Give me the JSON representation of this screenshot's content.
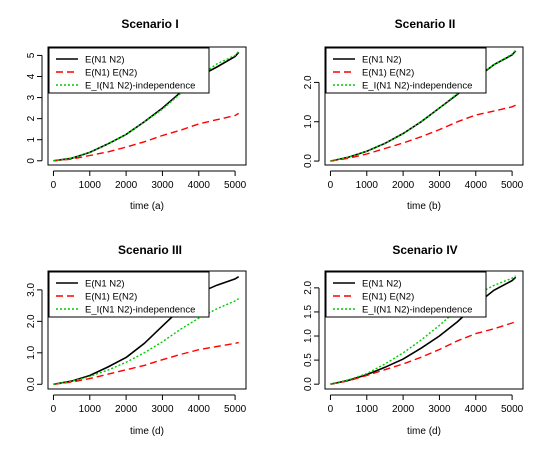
{
  "chart_data": [
    {
      "type": "line",
      "title": "Scenario I",
      "xlabel": "time (a)",
      "ylabel": "",
      "xlim": [
        -150,
        5300
      ],
      "ylim": [
        -0.2,
        5.4
      ],
      "xticks": [
        0,
        1000,
        2000,
        3000,
        4000,
        5000
      ],
      "yticks": [
        0,
        1,
        2,
        3,
        4,
        5
      ],
      "legend_position": "top-left",
      "series": [
        {
          "name": "E(N1 N2)",
          "color": "#000000",
          "dash": "solid",
          "x": [
            0,
            500,
            1000,
            1500,
            2000,
            2500,
            3000,
            3500,
            4000,
            4500,
            5000,
            5100
          ],
          "y": [
            0,
            0.12,
            0.4,
            0.8,
            1.25,
            1.85,
            2.5,
            3.25,
            4.0,
            4.45,
            4.95,
            5.15
          ]
        },
        {
          "name": "E(N1) E(N2)",
          "color": "#ff0000",
          "dash": "dashed",
          "x": [
            0,
            500,
            1000,
            1500,
            2000,
            2500,
            3000,
            3500,
            4000,
            4500,
            5000,
            5100
          ],
          "y": [
            0,
            0.08,
            0.25,
            0.42,
            0.65,
            0.9,
            1.2,
            1.45,
            1.75,
            1.95,
            2.15,
            2.25
          ]
        },
        {
          "name": "E_I(N1 N2)-independence",
          "color": "#00cc00",
          "dash": "dotted",
          "x": [
            0,
            500,
            1000,
            1500,
            2000,
            2500,
            3000,
            3500,
            4000,
            4500,
            5000,
            5100
          ],
          "y": [
            0,
            0.12,
            0.4,
            0.8,
            1.25,
            1.85,
            2.45,
            3.2,
            4.0,
            4.6,
            5.0,
            5.2
          ]
        }
      ]
    },
    {
      "type": "line",
      "title": "Scenario II",
      "xlabel": "time (b)",
      "ylabel": "",
      "xlim": [
        -150,
        5300
      ],
      "ylim": [
        -0.1,
        2.9
      ],
      "xticks": [
        0,
        1000,
        2000,
        3000,
        4000,
        5000
      ],
      "yticks": [
        0.0,
        1.0,
        2.0
      ],
      "legend_position": "top-left",
      "series": [
        {
          "name": "E(N1 N2)",
          "color": "#000000",
          "dash": "solid",
          "x": [
            0,
            500,
            1000,
            1500,
            2000,
            2500,
            3000,
            3500,
            4000,
            4500,
            5000,
            5100
          ],
          "y": [
            0,
            0.1,
            0.25,
            0.45,
            0.7,
            1.0,
            1.35,
            1.7,
            2.1,
            2.45,
            2.7,
            2.8
          ]
        },
        {
          "name": "E(N1) E(N2)",
          "color": "#ff0000",
          "dash": "dashed",
          "x": [
            0,
            500,
            1000,
            1500,
            2000,
            2500,
            3000,
            3500,
            4000,
            4500,
            5000,
            5100
          ],
          "y": [
            0,
            0.07,
            0.18,
            0.32,
            0.46,
            0.62,
            0.8,
            1.0,
            1.17,
            1.27,
            1.38,
            1.42
          ]
        },
        {
          "name": "E_I(N1 N2)-independence",
          "color": "#00cc00",
          "dash": "dotted",
          "x": [
            0,
            500,
            1000,
            1500,
            2000,
            2500,
            3000,
            3500,
            4000,
            4500,
            5000,
            5100
          ],
          "y": [
            0,
            0.1,
            0.25,
            0.45,
            0.7,
            1.0,
            1.35,
            1.72,
            2.12,
            2.45,
            2.72,
            2.82
          ]
        }
      ]
    },
    {
      "type": "line",
      "title": "Scenario III",
      "xlabel": "time (d)",
      "ylabel": "",
      "xlim": [
        -150,
        5300
      ],
      "ylim": [
        -0.15,
        3.6
      ],
      "xticks": [
        0,
        1000,
        2000,
        3000,
        4000,
        5000
      ],
      "yticks": [
        0.0,
        1.0,
        2.0,
        3.0
      ],
      "legend_position": "top-left",
      "series": [
        {
          "name": "E(N1 N2)",
          "color": "#000000",
          "dash": "solid",
          "x": [
            0,
            500,
            1000,
            1500,
            2000,
            2500,
            3000,
            3500,
            4000,
            4500,
            5000,
            5100
          ],
          "y": [
            0,
            0.1,
            0.28,
            0.55,
            0.85,
            1.3,
            1.85,
            2.4,
            2.9,
            3.15,
            3.35,
            3.42
          ]
        },
        {
          "name": "E(N1) E(N2)",
          "color": "#ff0000",
          "dash": "dashed",
          "x": [
            0,
            500,
            1000,
            1500,
            2000,
            2500,
            3000,
            3500,
            4000,
            4500,
            5000,
            5100
          ],
          "y": [
            0,
            0.07,
            0.18,
            0.32,
            0.46,
            0.6,
            0.78,
            0.95,
            1.1,
            1.2,
            1.3,
            1.33
          ]
        },
        {
          "name": "E_I(N1 N2)-independence",
          "color": "#00cc00",
          "dash": "dotted",
          "x": [
            0,
            500,
            1000,
            1500,
            2000,
            2500,
            3000,
            3500,
            4000,
            4500,
            5000,
            5100
          ],
          "y": [
            0,
            0.09,
            0.25,
            0.45,
            0.7,
            1.0,
            1.35,
            1.75,
            2.1,
            2.4,
            2.65,
            2.72
          ]
        }
      ]
    },
    {
      "type": "line",
      "title": "Scenario IV",
      "xlabel": "time (d)",
      "ylabel": "",
      "xlim": [
        -150,
        5300
      ],
      "ylim": [
        -0.1,
        2.35
      ],
      "xticks": [
        0,
        1000,
        2000,
        3000,
        4000,
        5000
      ],
      "yticks": [
        0.0,
        0.5,
        1.0,
        1.5,
        2.0
      ],
      "legend_position": "top-left",
      "series": [
        {
          "name": "E(N1 N2)",
          "color": "#000000",
          "dash": "solid",
          "x": [
            0,
            500,
            1000,
            1500,
            2000,
            2500,
            3000,
            3500,
            4000,
            4500,
            5000,
            5100
          ],
          "y": [
            0,
            0.08,
            0.2,
            0.35,
            0.52,
            0.75,
            1.0,
            1.3,
            1.65,
            1.95,
            2.15,
            2.22
          ]
        },
        {
          "name": "E(N1) E(N2)",
          "color": "#ff0000",
          "dash": "dashed",
          "x": [
            0,
            500,
            1000,
            1500,
            2000,
            2500,
            3000,
            3500,
            4000,
            4500,
            5000,
            5100
          ],
          "y": [
            0,
            0.07,
            0.18,
            0.3,
            0.42,
            0.56,
            0.72,
            0.9,
            1.05,
            1.15,
            1.27,
            1.3
          ]
        },
        {
          "name": "E_I(N1 N2)-independence",
          "color": "#00cc00",
          "dash": "dotted",
          "x": [
            0,
            500,
            1000,
            1500,
            2000,
            2500,
            3000,
            3500,
            4000,
            4500,
            5000,
            5100
          ],
          "y": [
            0,
            0.09,
            0.22,
            0.42,
            0.65,
            0.92,
            1.22,
            1.55,
            1.85,
            2.05,
            2.2,
            2.25
          ]
        }
      ]
    }
  ]
}
